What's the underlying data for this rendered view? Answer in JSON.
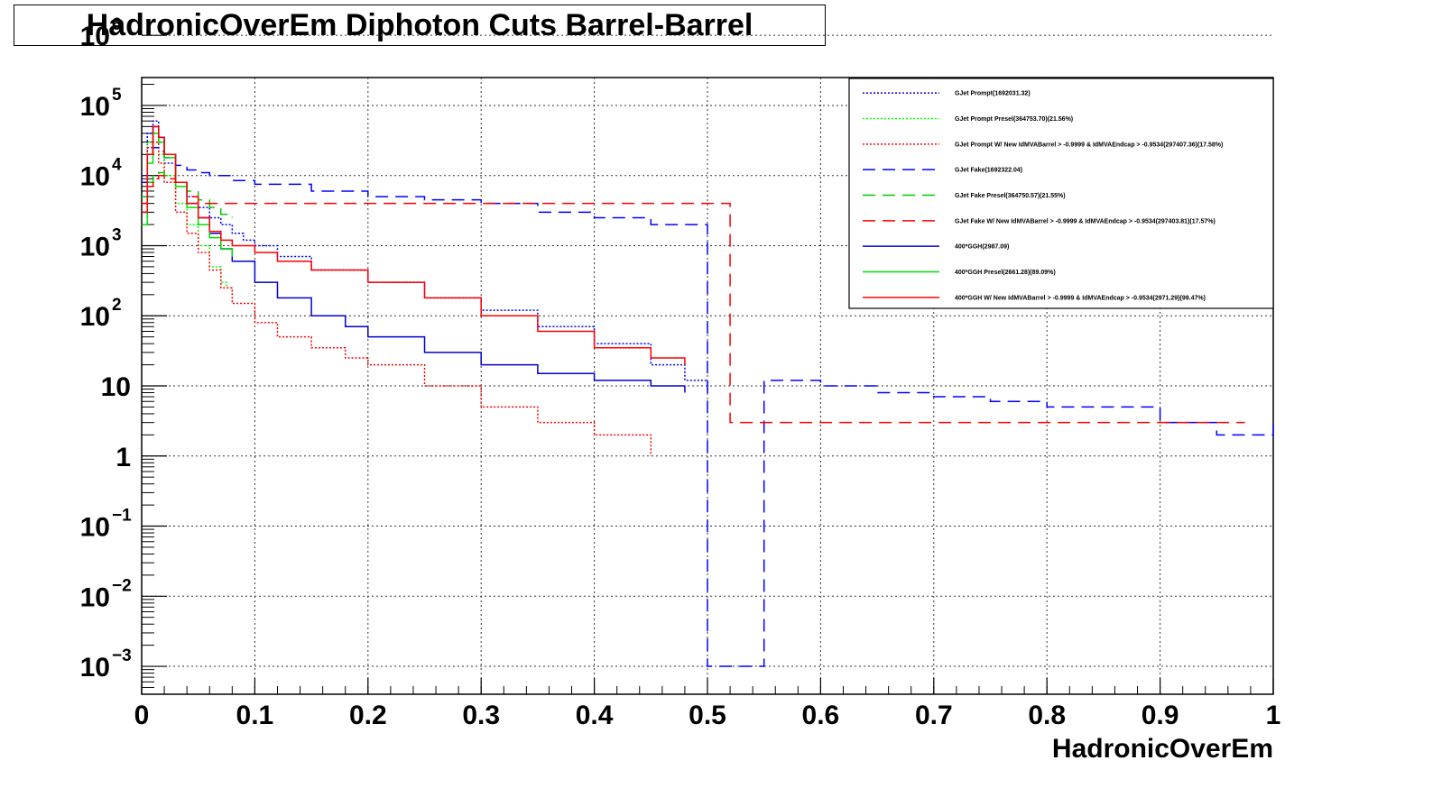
{
  "chart_data": {
    "type": "line",
    "title": "HadronicOverEm Diphoton Cuts Barrel-Barrel",
    "xlabel": "HadronicOverEm",
    "ylabel": "",
    "xlim": [
      0,
      1
    ],
    "ylim": [
      0.0004,
      250000
    ],
    "log_y": true,
    "grid": true,
    "legend_position": "top-right",
    "x_ticks": [
      "0",
      "0.1",
      "0.2",
      "0.3",
      "0.4",
      "0.5",
      "0.6",
      "0.7",
      "0.8",
      "0.9",
      "1"
    ],
    "y_ticks": [
      {
        "value": 0.001,
        "base": "10",
        "exp": "−3"
      },
      {
        "value": 0.01,
        "base": "10",
        "exp": "−2"
      },
      {
        "value": 0.1,
        "base": "10",
        "exp": "−1"
      },
      {
        "value": 1,
        "base": "1",
        "exp": ""
      },
      {
        "value": 10,
        "base": "10",
        "exp": ""
      },
      {
        "value": 100,
        "base": "10",
        "exp": "2"
      },
      {
        "value": 1000,
        "base": "10",
        "exp": "3"
      },
      {
        "value": 10000,
        "base": "10",
        "exp": "4"
      },
      {
        "value": 100000,
        "base": "10",
        "exp": "5"
      },
      {
        "value": 1000000,
        "base": "10",
        "exp": "6"
      }
    ],
    "series": [
      {
        "name": "GJet Prompt(1692031.32)",
        "color": "#0000ff",
        "dash": "dotted",
        "x": [
          0,
          0.005,
          0.01,
          0.015,
          0.02,
          0.03,
          0.04,
          0.05,
          0.06,
          0.07,
          0.08,
          0.09,
          0.1,
          0.12,
          0.15,
          0.2,
          0.25,
          0.3,
          0.35,
          0.4,
          0.45,
          0.48,
          0.5
        ],
        "y": [
          10000,
          40000,
          60000,
          30000,
          15000,
          8000,
          5000,
          3500,
          2500,
          2000,
          1500,
          1200,
          1000,
          700,
          450,
          300,
          180,
          120,
          70,
          40,
          20,
          12,
          8
        ]
      },
      {
        "name": "GJet Prompt Presel(364753.70)(21.56%)",
        "color": "#00ff00",
        "dash": "dotted",
        "x": [
          0,
          0.005,
          0.01,
          0.015,
          0.02,
          0.03,
          0.04,
          0.05,
          0.06,
          0.07,
          0.075,
          0.08
        ],
        "y": [
          5000,
          30000,
          40000,
          20000,
          10000,
          4000,
          2000,
          1000,
          500,
          300,
          250,
          200
        ]
      },
      {
        "name": "GJet Prompt W/ New IdMVABarrel > -0.9999 & IdMVAEndcap > -0.9534(297407.36)(17.58%)",
        "color": "#ff0000",
        "dash": "dotted",
        "x": [
          0,
          0.005,
          0.01,
          0.015,
          0.02,
          0.03,
          0.04,
          0.05,
          0.06,
          0.07,
          0.08,
          0.1,
          0.12,
          0.15,
          0.18,
          0.2,
          0.25,
          0.3,
          0.35,
          0.4,
          0.45
        ],
        "y": [
          4000,
          25000,
          30000,
          15000,
          8000,
          3000,
          1500,
          800,
          450,
          250,
          150,
          80,
          50,
          35,
          25,
          20,
          10,
          5,
          3,
          2,
          1
        ]
      },
      {
        "name": "GJet Fake(1692322.04)",
        "color": "#0000ff",
        "dash": "dashed",
        "x": [
          0,
          0.005,
          0.01,
          0.015,
          0.02,
          0.03,
          0.04,
          0.05,
          0.06,
          0.08,
          0.1,
          0.15,
          0.2,
          0.25,
          0.3,
          0.35,
          0.4,
          0.45,
          0.5,
          0.5,
          0.55,
          0.6,
          0.65,
          0.7,
          0.75,
          0.8,
          0.85,
          0.9,
          0.95,
          1.0
        ],
        "y": [
          8000,
          20000,
          25000,
          22000,
          18000,
          14000,
          12000,
          11000,
          10000,
          8500,
          7500,
          6000,
          5000,
          4500,
          4000,
          3000,
          2500,
          2000,
          1700,
          0.001,
          12,
          10,
          8,
          7,
          6,
          5,
          5,
          3,
          2,
          3
        ]
      },
      {
        "name": "GJet Fake Presel(364750.57)(21.55%)",
        "color": "#00cc00",
        "dash": "dashed",
        "x": [
          0,
          0.005,
          0.01,
          0.015,
          0.02,
          0.03,
          0.04,
          0.05,
          0.06,
          0.07,
          0.08
        ],
        "y": [
          5000,
          8000,
          10000,
          11000,
          10000,
          8000,
          6000,
          4500,
          3500,
          2800,
          2500
        ]
      },
      {
        "name": "GJet Fake W/ New IdMVABarrel > -0.9999 & IdMVAEndcap > -0.9534(297403.81)(17.57%)",
        "color": "#ff0000",
        "dash": "dashed",
        "x": [
          0,
          0.005,
          0.01,
          0.015,
          0.02,
          0.03,
          0.04,
          0.05,
          0.52,
          0.725,
          0.975
        ],
        "y": [
          4000,
          7000,
          9000,
          10000,
          9000,
          7000,
          5000,
          4000,
          3,
          3,
          3
        ]
      },
      {
        "name": "400*GGH(2987.09)",
        "color": "#0000cc",
        "dash": "solid",
        "x": [
          0,
          0.005,
          0.01,
          0.015,
          0.02,
          0.03,
          0.04,
          0.05,
          0.06,
          0.07,
          0.08,
          0.1,
          0.12,
          0.15,
          0.18,
          0.2,
          0.25,
          0.3,
          0.35,
          0.4,
          0.45,
          0.48
        ],
        "y": [
          3000,
          20000,
          50000,
          35000,
          20000,
          8000,
          4000,
          2500,
          1500,
          900,
          600,
          300,
          180,
          100,
          70,
          50,
          30,
          20,
          15,
          12,
          10,
          8
        ]
      },
      {
        "name": "400*GGH Presel(2661.28)(89.09%)",
        "color": "#00dd00",
        "dash": "solid",
        "x": [
          0,
          0.005,
          0.01,
          0.015,
          0.02,
          0.03,
          0.04,
          0.05,
          0.06,
          0.07,
          0.08
        ],
        "y": [
          2000,
          15000,
          40000,
          30000,
          18000,
          7000,
          3500,
          2000,
          1300,
          900,
          700
        ]
      },
      {
        "name": "400*GGH W/ New IdMVABarrel > -0.9999 & IdMVAEndcap > -0.9534(2971.29)(99.47%)",
        "color": "#ff0000",
        "dash": "solid",
        "x": [
          0,
          0.005,
          0.01,
          0.015,
          0.02,
          0.03,
          0.04,
          0.05,
          0.06,
          0.07,
          0.08,
          0.1,
          0.12,
          0.15,
          0.2,
          0.25,
          0.3,
          0.35,
          0.4,
          0.45,
          0.48
        ],
        "y": [
          3000,
          20000,
          50000,
          35000,
          20000,
          8000,
          4000,
          2500,
          1600,
          1200,
          1000,
          800,
          600,
          450,
          300,
          180,
          100,
          60,
          35,
          25,
          20
        ]
      }
    ]
  }
}
